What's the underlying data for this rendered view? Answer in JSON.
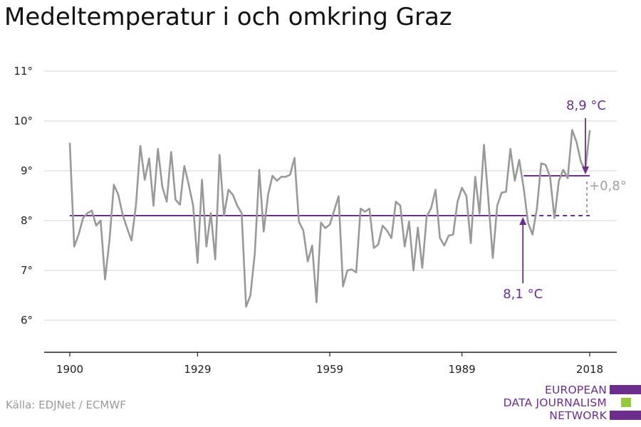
{
  "title": "Medeltemperatur i och omkring Graz",
  "source": "Källa: EDJNet / ECMWF",
  "logo": {
    "lines": [
      "EUROPEAN",
      "DATA JOURNALISM",
      "NETWORK"
    ],
    "colors": [
      "#6c2d8c",
      "#97c93d",
      "#6c2d8c"
    ]
  },
  "colors": {
    "series": "#999999",
    "accent": "#6a2e8e",
    "grid": "#dddddd",
    "axis": "#222222",
    "delta": "#9e9e9e"
  },
  "chart_data": {
    "type": "line",
    "title": "Medeltemperatur i och omkring Graz",
    "xlabel": "",
    "ylabel": "",
    "xlim": [
      1900,
      2018
    ],
    "ylim": [
      5.3,
      11.3
    ],
    "x_ticks": [
      1900,
      1929,
      1959,
      1989,
      2018
    ],
    "y_ticks": [
      6,
      7,
      8,
      9,
      10,
      11
    ],
    "y_tick_labels": [
      "6°",
      "7°",
      "8°",
      "9°",
      "10°",
      "11°"
    ],
    "grid": true,
    "series": [
      {
        "x": [
          1900,
          1901,
          1902,
          1903,
          1904,
          1905,
          1906,
          1907,
          1908,
          1909,
          1910,
          1911,
          1912,
          1913,
          1914,
          1915,
          1916,
          1917,
          1918,
          1919,
          1920,
          1921,
          1922,
          1923,
          1924,
          1925,
          1926,
          1927,
          1928,
          1929,
          1930,
          1931,
          1932,
          1933,
          1934,
          1935,
          1936,
          1937,
          1938,
          1939,
          1940,
          1941,
          1942,
          1943,
          1944,
          1945,
          1946,
          1947,
          1948,
          1949,
          1950,
          1951,
          1952,
          1953,
          1954,
          1955,
          1956,
          1957,
          1958,
          1959,
          1960,
          1961,
          1962,
          1963,
          1964,
          1965,
          1966,
          1967,
          1968,
          1969,
          1970,
          1971,
          1972,
          1973,
          1974,
          1975,
          1976,
          1977,
          1978,
          1979,
          1980,
          1981,
          1982,
          1983,
          1984,
          1985,
          1986,
          1987,
          1988,
          1989,
          1990,
          1991,
          1992,
          1993,
          1994,
          1995,
          1996,
          1997,
          1998,
          1999,
          2000,
          2001,
          2002,
          2003,
          2004,
          2005,
          2006,
          2007,
          2008,
          2009,
          2010,
          2011,
          2012,
          2013,
          2014,
          2015,
          2016,
          2017,
          2018
        ],
        "values": [
          9.55,
          7.48,
          7.72,
          8.05,
          8.15,
          8.2,
          7.9,
          8.0,
          6.82,
          7.6,
          8.72,
          8.52,
          8.12,
          7.85,
          7.6,
          8.3,
          9.5,
          8.82,
          9.25,
          8.3,
          9.44,
          8.68,
          8.38,
          9.38,
          8.42,
          8.32,
          9.1,
          8.72,
          8.3,
          7.15,
          8.82,
          7.48,
          8.15,
          7.22,
          9.32,
          8.1,
          8.62,
          8.52,
          8.3,
          8.15,
          6.27,
          6.5,
          7.35,
          9.02,
          7.78,
          8.52,
          8.9,
          8.8,
          8.88,
          8.88,
          8.92,
          9.26,
          7.98,
          7.8,
          7.18,
          7.5,
          6.36,
          7.96,
          7.85,
          7.92,
          8.2,
          8.49,
          6.68,
          7.0,
          7.02,
          6.96,
          8.24,
          8.18,
          8.24,
          7.45,
          7.52,
          7.9,
          7.8,
          7.65,
          8.38,
          8.3,
          7.48,
          7.98,
          7.0,
          7.86,
          7.05,
          8.08,
          8.25,
          8.62,
          7.65,
          7.5,
          7.7,
          7.72,
          8.38,
          8.66,
          8.5,
          7.55,
          8.88,
          8.14,
          9.52,
          8.42,
          7.25,
          8.3,
          8.56,
          8.58,
          9.44,
          8.8,
          9.22,
          8.66,
          7.96,
          7.72,
          8.24,
          9.15,
          9.12,
          8.88,
          8.05,
          8.8,
          9.02,
          8.85,
          9.82,
          9.58,
          9.18,
          9.02,
          9.8
        ]
      }
    ],
    "baseline": {
      "value": 8.1,
      "from": 1900,
      "to": 2018,
      "solid_until": 2003
    },
    "recent": {
      "value": 8.9,
      "from": 2003,
      "to": 2018
    },
    "annotations": {
      "recent_label": "8,9 °C",
      "baseline_label": "8,1 °C",
      "delta_label": "+0,8°"
    }
  }
}
